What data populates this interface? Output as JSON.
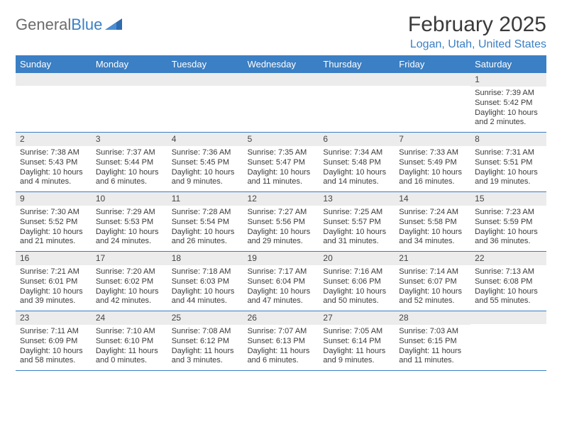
{
  "logo": {
    "text_left": "General",
    "text_right": "Blue"
  },
  "title": "February 2025",
  "location": "Logan, Utah, United States",
  "colors": {
    "header_bg": "#3b7fc4",
    "header_text": "#ffffff",
    "daynum_bg": "#ececec",
    "border": "#3b7fc4",
    "body_text": "#3a3a3a",
    "accent_text": "#3b7fc4",
    "logo_gray": "#6b6b6b"
  },
  "typography": {
    "title_fontsize": 30,
    "location_fontsize": 16,
    "dayheader_fontsize": 13,
    "daynum_fontsize": 12,
    "cell_fontsize": 11
  },
  "day_names": [
    "Sunday",
    "Monday",
    "Tuesday",
    "Wednesday",
    "Thursday",
    "Friday",
    "Saturday"
  ],
  "weeks": [
    [
      {
        "num": "",
        "sunrise": "",
        "sunset": "",
        "daylight": ""
      },
      {
        "num": "",
        "sunrise": "",
        "sunset": "",
        "daylight": ""
      },
      {
        "num": "",
        "sunrise": "",
        "sunset": "",
        "daylight": ""
      },
      {
        "num": "",
        "sunrise": "",
        "sunset": "",
        "daylight": ""
      },
      {
        "num": "",
        "sunrise": "",
        "sunset": "",
        "daylight": ""
      },
      {
        "num": "",
        "sunrise": "",
        "sunset": "",
        "daylight": ""
      },
      {
        "num": "1",
        "sunrise": "Sunrise: 7:39 AM",
        "sunset": "Sunset: 5:42 PM",
        "daylight": "Daylight: 10 hours and 2 minutes."
      }
    ],
    [
      {
        "num": "2",
        "sunrise": "Sunrise: 7:38 AM",
        "sunset": "Sunset: 5:43 PM",
        "daylight": "Daylight: 10 hours and 4 minutes."
      },
      {
        "num": "3",
        "sunrise": "Sunrise: 7:37 AM",
        "sunset": "Sunset: 5:44 PM",
        "daylight": "Daylight: 10 hours and 6 minutes."
      },
      {
        "num": "4",
        "sunrise": "Sunrise: 7:36 AM",
        "sunset": "Sunset: 5:45 PM",
        "daylight": "Daylight: 10 hours and 9 minutes."
      },
      {
        "num": "5",
        "sunrise": "Sunrise: 7:35 AM",
        "sunset": "Sunset: 5:47 PM",
        "daylight": "Daylight: 10 hours and 11 minutes."
      },
      {
        "num": "6",
        "sunrise": "Sunrise: 7:34 AM",
        "sunset": "Sunset: 5:48 PM",
        "daylight": "Daylight: 10 hours and 14 minutes."
      },
      {
        "num": "7",
        "sunrise": "Sunrise: 7:33 AM",
        "sunset": "Sunset: 5:49 PM",
        "daylight": "Daylight: 10 hours and 16 minutes."
      },
      {
        "num": "8",
        "sunrise": "Sunrise: 7:31 AM",
        "sunset": "Sunset: 5:51 PM",
        "daylight": "Daylight: 10 hours and 19 minutes."
      }
    ],
    [
      {
        "num": "9",
        "sunrise": "Sunrise: 7:30 AM",
        "sunset": "Sunset: 5:52 PM",
        "daylight": "Daylight: 10 hours and 21 minutes."
      },
      {
        "num": "10",
        "sunrise": "Sunrise: 7:29 AM",
        "sunset": "Sunset: 5:53 PM",
        "daylight": "Daylight: 10 hours and 24 minutes."
      },
      {
        "num": "11",
        "sunrise": "Sunrise: 7:28 AM",
        "sunset": "Sunset: 5:54 PM",
        "daylight": "Daylight: 10 hours and 26 minutes."
      },
      {
        "num": "12",
        "sunrise": "Sunrise: 7:27 AM",
        "sunset": "Sunset: 5:56 PM",
        "daylight": "Daylight: 10 hours and 29 minutes."
      },
      {
        "num": "13",
        "sunrise": "Sunrise: 7:25 AM",
        "sunset": "Sunset: 5:57 PM",
        "daylight": "Daylight: 10 hours and 31 minutes."
      },
      {
        "num": "14",
        "sunrise": "Sunrise: 7:24 AM",
        "sunset": "Sunset: 5:58 PM",
        "daylight": "Daylight: 10 hours and 34 minutes."
      },
      {
        "num": "15",
        "sunrise": "Sunrise: 7:23 AM",
        "sunset": "Sunset: 5:59 PM",
        "daylight": "Daylight: 10 hours and 36 minutes."
      }
    ],
    [
      {
        "num": "16",
        "sunrise": "Sunrise: 7:21 AM",
        "sunset": "Sunset: 6:01 PM",
        "daylight": "Daylight: 10 hours and 39 minutes."
      },
      {
        "num": "17",
        "sunrise": "Sunrise: 7:20 AM",
        "sunset": "Sunset: 6:02 PM",
        "daylight": "Daylight: 10 hours and 42 minutes."
      },
      {
        "num": "18",
        "sunrise": "Sunrise: 7:18 AM",
        "sunset": "Sunset: 6:03 PM",
        "daylight": "Daylight: 10 hours and 44 minutes."
      },
      {
        "num": "19",
        "sunrise": "Sunrise: 7:17 AM",
        "sunset": "Sunset: 6:04 PM",
        "daylight": "Daylight: 10 hours and 47 minutes."
      },
      {
        "num": "20",
        "sunrise": "Sunrise: 7:16 AM",
        "sunset": "Sunset: 6:06 PM",
        "daylight": "Daylight: 10 hours and 50 minutes."
      },
      {
        "num": "21",
        "sunrise": "Sunrise: 7:14 AM",
        "sunset": "Sunset: 6:07 PM",
        "daylight": "Daylight: 10 hours and 52 minutes."
      },
      {
        "num": "22",
        "sunrise": "Sunrise: 7:13 AM",
        "sunset": "Sunset: 6:08 PM",
        "daylight": "Daylight: 10 hours and 55 minutes."
      }
    ],
    [
      {
        "num": "23",
        "sunrise": "Sunrise: 7:11 AM",
        "sunset": "Sunset: 6:09 PM",
        "daylight": "Daylight: 10 hours and 58 minutes."
      },
      {
        "num": "24",
        "sunrise": "Sunrise: 7:10 AM",
        "sunset": "Sunset: 6:10 PM",
        "daylight": "Daylight: 11 hours and 0 minutes."
      },
      {
        "num": "25",
        "sunrise": "Sunrise: 7:08 AM",
        "sunset": "Sunset: 6:12 PM",
        "daylight": "Daylight: 11 hours and 3 minutes."
      },
      {
        "num": "26",
        "sunrise": "Sunrise: 7:07 AM",
        "sunset": "Sunset: 6:13 PM",
        "daylight": "Daylight: 11 hours and 6 minutes."
      },
      {
        "num": "27",
        "sunrise": "Sunrise: 7:05 AM",
        "sunset": "Sunset: 6:14 PM",
        "daylight": "Daylight: 11 hours and 9 minutes."
      },
      {
        "num": "28",
        "sunrise": "Sunrise: 7:03 AM",
        "sunset": "Sunset: 6:15 PM",
        "daylight": "Daylight: 11 hours and 11 minutes."
      },
      {
        "num": "",
        "sunrise": "",
        "sunset": "",
        "daylight": ""
      }
    ]
  ]
}
